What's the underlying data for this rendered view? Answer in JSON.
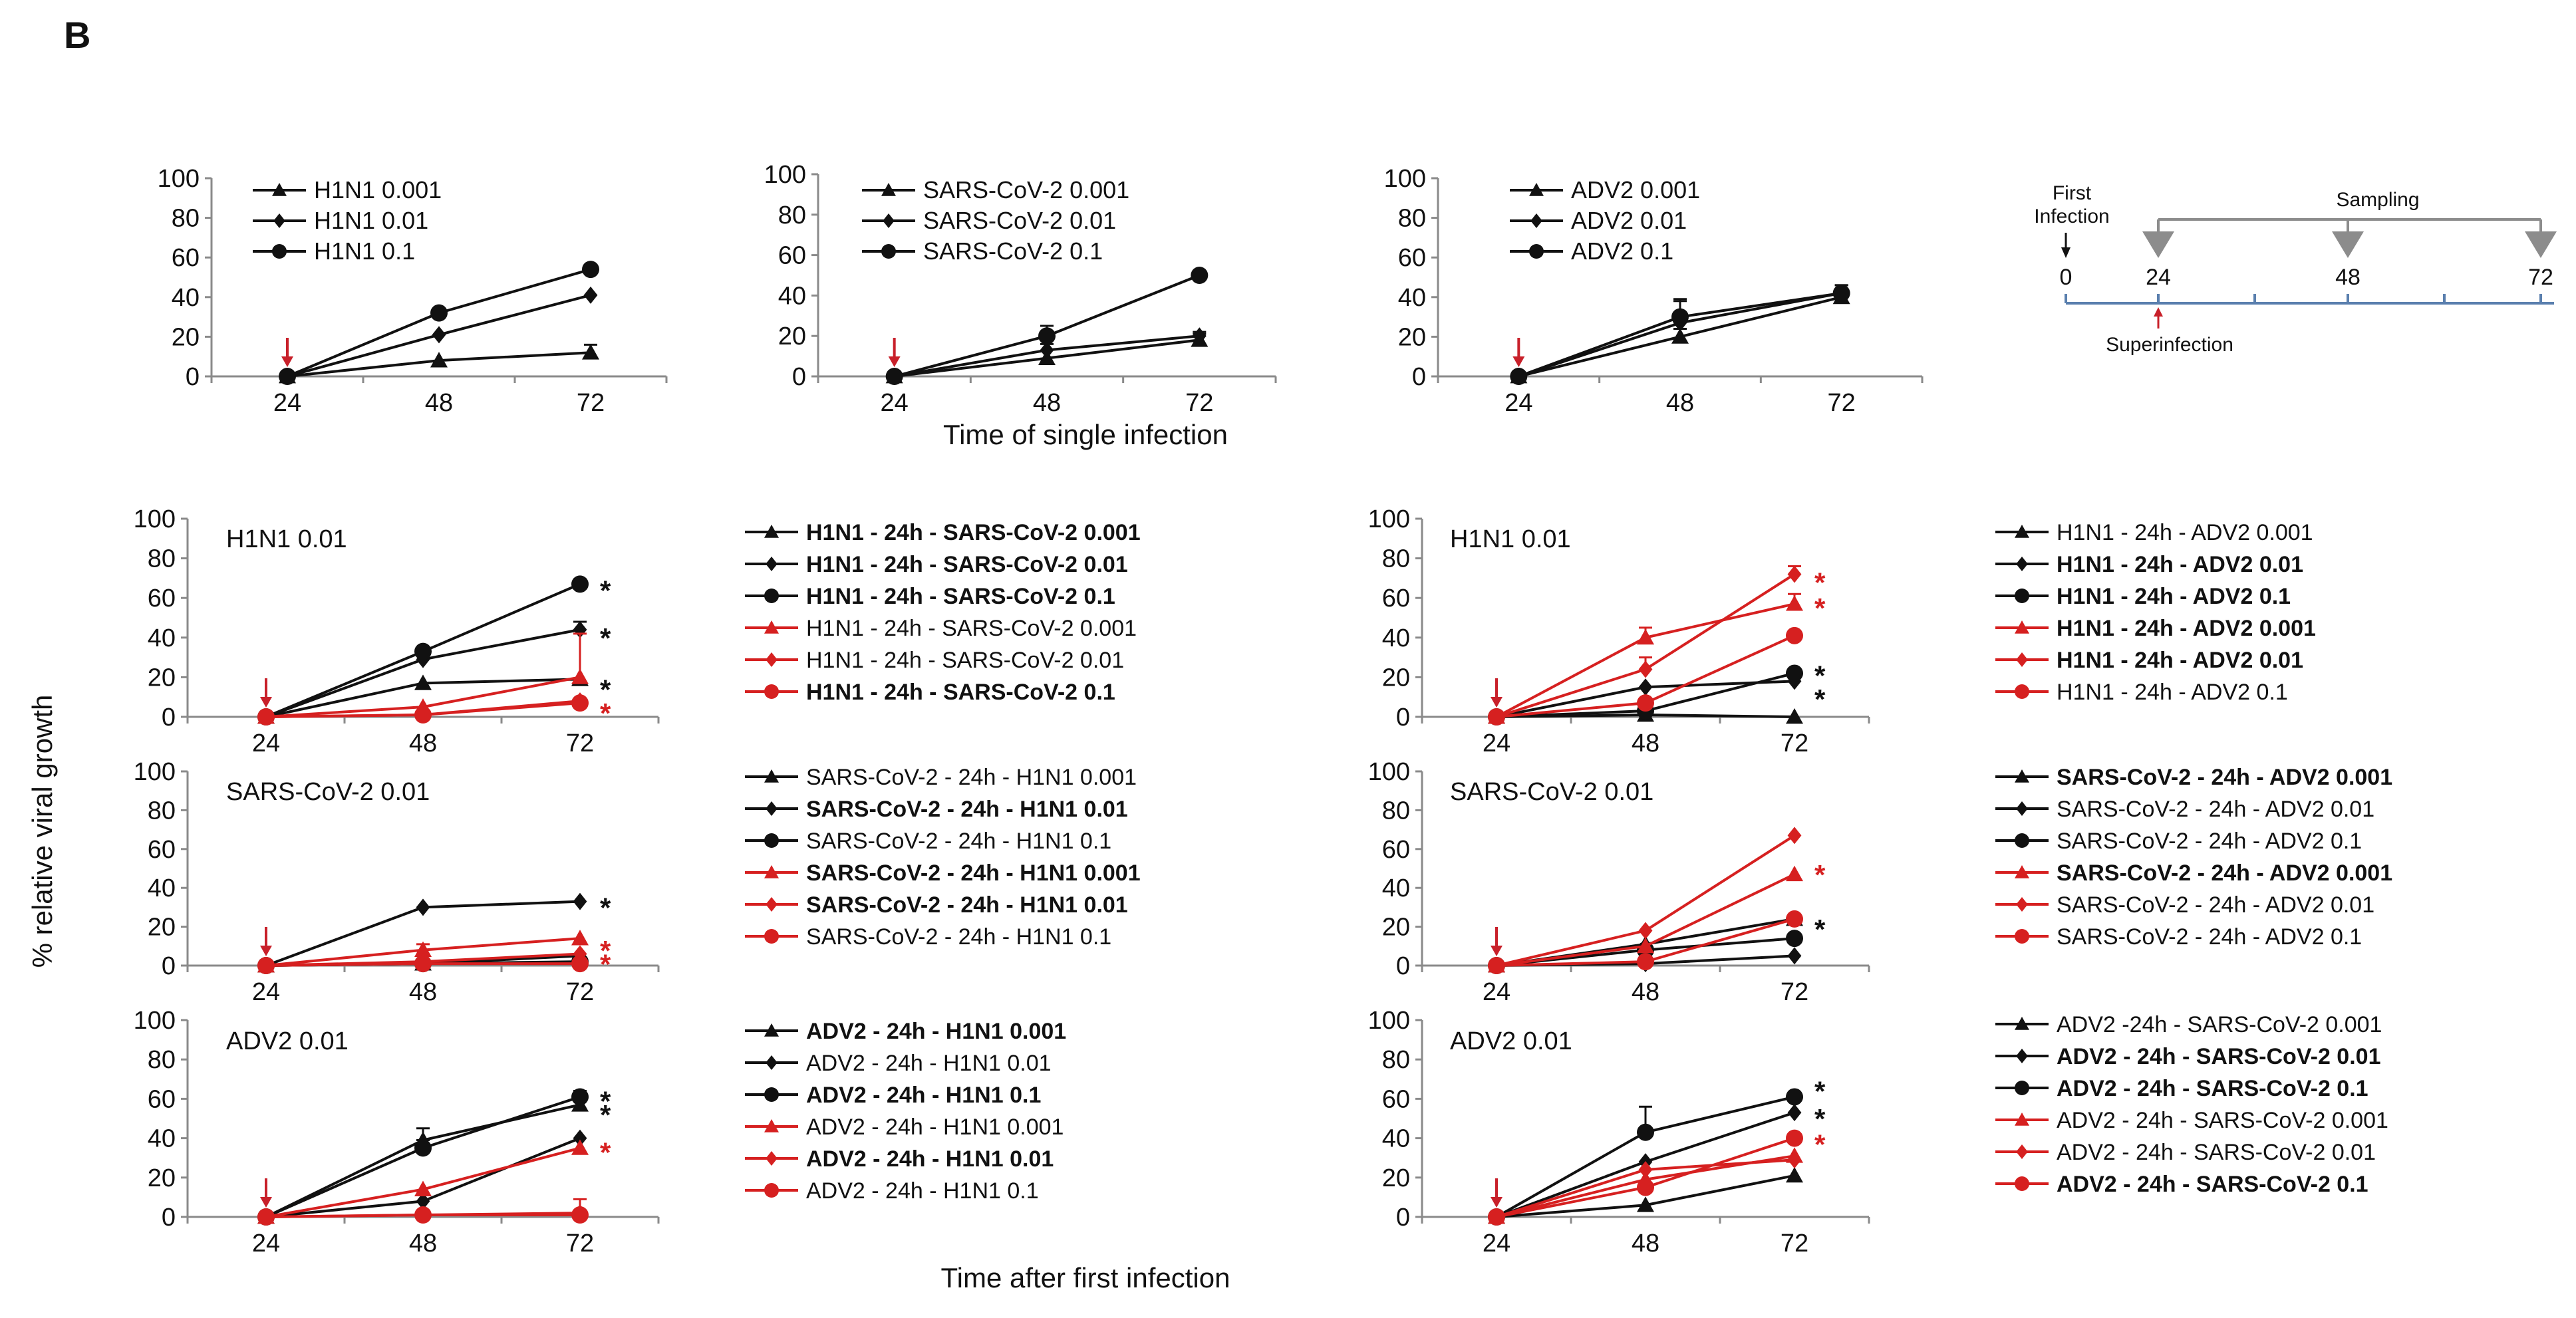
{
  "panel_label": "B",
  "y_axis_label": "% relative viral growth",
  "x_label_top": "Time of single infection",
  "x_label_bottom": "Time after first infection",
  "colors": {
    "black": "#111111",
    "red": "#d62020",
    "arrow": "#c8202a",
    "timeline_gray": "#8c8c8c",
    "timeline_blue": "#5a7fae"
  },
  "timeline": {
    "first_infection_line1": "First",
    "first_infection_line2": "Infection",
    "sampling": "Sampling",
    "superinfection": "Superinfection",
    "ticks": [
      "0",
      "24",
      "48",
      "72"
    ]
  },
  "chart_data": [
    {
      "id": "single-h1n1",
      "type": "line",
      "categories": [
        "24",
        "48",
        "72"
      ],
      "ylim": [
        0,
        100
      ],
      "yticks": [
        "0",
        "20",
        "40",
        "60",
        "80",
        "100"
      ],
      "title": "",
      "series": [
        {
          "name": "H1N1 0.001",
          "values": [
            0,
            8,
            12
          ],
          "color": "black",
          "marker": "triangle",
          "bold": false,
          "err": [
            0,
            0,
            4
          ]
        },
        {
          "name": "H1N1 0.01",
          "values": [
            0,
            21,
            41
          ],
          "color": "black",
          "marker": "diamond",
          "bold": false,
          "err": [
            0,
            0,
            0
          ]
        },
        {
          "name": "H1N1 0.1",
          "values": [
            0,
            32,
            54
          ],
          "color": "black",
          "marker": "circle",
          "bold": false,
          "err": [
            0,
            0,
            0
          ]
        }
      ],
      "stars": []
    },
    {
      "id": "single-sars",
      "type": "line",
      "categories": [
        "24",
        "48",
        "72"
      ],
      "ylim": [
        0,
        100
      ],
      "yticks": [
        "0",
        "20",
        "40",
        "60",
        "80",
        "100"
      ],
      "title": "",
      "series": [
        {
          "name": "SARS-CoV-2 0.001",
          "values": [
            0,
            9,
            18
          ],
          "color": "black",
          "marker": "triangle",
          "bold": false,
          "err": [
            0,
            0,
            3
          ]
        },
        {
          "name": "SARS-CoV-2 0.01",
          "values": [
            0,
            13,
            20
          ],
          "color": "black",
          "marker": "diamond",
          "bold": false,
          "err": [
            0,
            3,
            2
          ]
        },
        {
          "name": "SARS-CoV-2 0.1",
          "values": [
            0,
            20,
            50
          ],
          "color": "black",
          "marker": "circle",
          "bold": false,
          "err": [
            0,
            5,
            0
          ]
        }
      ],
      "stars": []
    },
    {
      "id": "single-adv2",
      "type": "line",
      "categories": [
        "24",
        "48",
        "72"
      ],
      "ylim": [
        0,
        100
      ],
      "yticks": [
        "0",
        "20",
        "40",
        "60",
        "80",
        "100"
      ],
      "title": "",
      "series": [
        {
          "name": "ADV2 0.001",
          "values": [
            0,
            20,
            40
          ],
          "color": "black",
          "marker": "triangle",
          "bold": false,
          "err": [
            0,
            4,
            3
          ]
        },
        {
          "name": "ADV2 0.01",
          "values": [
            0,
            27,
            42
          ],
          "color": "black",
          "marker": "diamond",
          "bold": false,
          "err": [
            0,
            12,
            4
          ]
        },
        {
          "name": "ADV2 0.1",
          "values": [
            0,
            30,
            42
          ],
          "color": "black",
          "marker": "circle",
          "bold": false,
          "err": [
            0,
            8,
            4
          ]
        }
      ],
      "stars": []
    },
    {
      "id": "h1n1-sars",
      "type": "line",
      "categories": [
        "24",
        "48",
        "72"
      ],
      "ylim": [
        0,
        100
      ],
      "yticks": [
        "0",
        "20",
        "40",
        "60",
        "80",
        "100"
      ],
      "title": "H1N1 0.01",
      "series": [
        {
          "name": "H1N1 - 24h - SARS-CoV-2 0.001",
          "values": [
            0,
            17,
            19
          ],
          "color": "black",
          "marker": "triangle",
          "bold": true,
          "err": [
            0,
            0,
            0
          ]
        },
        {
          "name": "H1N1 - 24h - SARS-CoV-2 0.01",
          "values": [
            0,
            29,
            44
          ],
          "color": "black",
          "marker": "diamond",
          "bold": true,
          "err": [
            0,
            0,
            4
          ]
        },
        {
          "name": "H1N1 - 24h - SARS-CoV-2 0.1",
          "values": [
            0,
            33,
            67
          ],
          "color": "black",
          "marker": "circle",
          "bold": true,
          "err": [
            0,
            0,
            0
          ]
        },
        {
          "name": "H1N1 - 24h - SARS-CoV-2 0.001",
          "values": [
            0,
            5,
            20
          ],
          "color": "red",
          "marker": "triangle",
          "bold": false,
          "err": [
            0,
            0,
            22
          ]
        },
        {
          "name": "H1N1 - 24h - SARS-CoV-2 0.01",
          "values": [
            0,
            1,
            8
          ],
          "color": "red",
          "marker": "diamond",
          "bold": false,
          "err": [
            0,
            0,
            0
          ]
        },
        {
          "name": "H1N1 - 24h - SARS-CoV-2 0.1",
          "values": [
            0,
            1,
            7
          ],
          "color": "red",
          "marker": "circle",
          "bold": true,
          "err": [
            0,
            0,
            0
          ]
        }
      ],
      "stars": [
        {
          "value": 67,
          "color": "black"
        },
        {
          "value": 43,
          "color": "black"
        },
        {
          "value": 17,
          "color": "black"
        },
        {
          "value": 5,
          "color": "red"
        }
      ]
    },
    {
      "id": "h1n1-adv2",
      "type": "line",
      "categories": [
        "24",
        "48",
        "72"
      ],
      "ylim": [
        0,
        100
      ],
      "yticks": [
        "0",
        "20",
        "40",
        "60",
        "80",
        "100"
      ],
      "title": "H1N1 0.01",
      "series": [
        {
          "name": "H1N1 - 24h - ADV2 0.001",
          "values": [
            0,
            1,
            0
          ],
          "color": "black",
          "marker": "triangle",
          "bold": false,
          "err": [
            0,
            0,
            0
          ]
        },
        {
          "name": "H1N1 - 24h - ADV2 0.01",
          "values": [
            0,
            15,
            18
          ],
          "color": "black",
          "marker": "diamond",
          "bold": true,
          "err": [
            0,
            0,
            0
          ]
        },
        {
          "name": "H1N1 - 24h - ADV2 0.1",
          "values": [
            0,
            3,
            22
          ],
          "color": "black",
          "marker": "circle",
          "bold": true,
          "err": [
            0,
            0,
            0
          ]
        },
        {
          "name": "H1N1 - 24h - ADV2 0.001",
          "values": [
            0,
            40,
            57
          ],
          "color": "red",
          "marker": "triangle",
          "bold": true,
          "err": [
            0,
            5,
            5
          ]
        },
        {
          "name": "H1N1 - 24h - ADV2 0.01",
          "values": [
            0,
            24,
            72
          ],
          "color": "red",
          "marker": "diamond",
          "bold": true,
          "err": [
            0,
            6,
            4
          ]
        },
        {
          "name": "H1N1 - 24h - ADV2 0.1",
          "values": [
            0,
            7,
            41
          ],
          "color": "red",
          "marker": "circle",
          "bold": false,
          "err": [
            0,
            0,
            0
          ]
        }
      ],
      "stars": [
        {
          "value": 71,
          "color": "red"
        },
        {
          "value": 58,
          "color": "red"
        },
        {
          "value": 24,
          "color": "black"
        },
        {
          "value": 12,
          "color": "black"
        }
      ]
    },
    {
      "id": "sars-h1n1",
      "type": "line",
      "categories": [
        "24",
        "48",
        "72"
      ],
      "ylim": [
        0,
        100
      ],
      "yticks": [
        "0",
        "20",
        "40",
        "60",
        "80",
        "100"
      ],
      "title": "SARS-CoV-2 0.01",
      "series": [
        {
          "name": "SARS-CoV-2 - 24h - H1N1 0.001",
          "values": [
            0,
            1,
            5
          ],
          "color": "black",
          "marker": "triangle",
          "bold": false,
          "err": [
            0,
            0,
            0
          ]
        },
        {
          "name": "SARS-CoV-2 - 24h - H1N1 0.01",
          "values": [
            0,
            30,
            33
          ],
          "color": "black",
          "marker": "diamond",
          "bold": true,
          "err": [
            0,
            0,
            0
          ]
        },
        {
          "name": "SARS-CoV-2 - 24h - H1N1 0.1",
          "values": [
            0,
            1,
            2
          ],
          "color": "black",
          "marker": "circle",
          "bold": false,
          "err": [
            0,
            0,
            0
          ]
        },
        {
          "name": "SARS-CoV-2 - 24h - H1N1 0.001",
          "values": [
            0,
            8,
            14
          ],
          "color": "red",
          "marker": "triangle",
          "bold": true,
          "err": [
            0,
            3,
            0
          ]
        },
        {
          "name": "SARS-CoV-2 - 24h - H1N1 0.01",
          "values": [
            0,
            2,
            6
          ],
          "color": "red",
          "marker": "diamond",
          "bold": true,
          "err": [
            0,
            0,
            0
          ]
        },
        {
          "name": "SARS-CoV-2 - 24h - H1N1 0.1",
          "values": [
            0,
            1,
            1
          ],
          "color": "red",
          "marker": "circle",
          "bold": false,
          "err": [
            0,
            0,
            0
          ]
        }
      ],
      "stars": [
        {
          "value": 33,
          "color": "black"
        },
        {
          "value": 11,
          "color": "red"
        },
        {
          "value": 4,
          "color": "red"
        }
      ]
    },
    {
      "id": "sars-adv2",
      "type": "line",
      "categories": [
        "24",
        "48",
        "72"
      ],
      "ylim": [
        0,
        100
      ],
      "yticks": [
        "0",
        "20",
        "40",
        "60",
        "80",
        "100"
      ],
      "title": "SARS-CoV-2 0.01",
      "series": [
        {
          "name": "SARS-CoV-2 - 24h - ADV2 0.001",
          "values": [
            0,
            11,
            24
          ],
          "color": "black",
          "marker": "triangle",
          "bold": true,
          "err": [
            0,
            0,
            0
          ]
        },
        {
          "name": "SARS-CoV-2 - 24h - ADV2 0.01",
          "values": [
            0,
            1,
            5
          ],
          "color": "black",
          "marker": "diamond",
          "bold": false,
          "err": [
            0,
            0,
            0
          ]
        },
        {
          "name": "SARS-CoV-2 - 24h - ADV2 0.1",
          "values": [
            0,
            8,
            14
          ],
          "color": "black",
          "marker": "circle",
          "bold": false,
          "err": [
            0,
            0,
            0
          ]
        },
        {
          "name": "SARS-CoV-2 - 24h - ADV2 0.001",
          "values": [
            0,
            10,
            47
          ],
          "color": "red",
          "marker": "triangle",
          "bold": true,
          "err": [
            0,
            0,
            0
          ]
        },
        {
          "name": "SARS-CoV-2 - 24h - ADV2 0.01",
          "values": [
            0,
            18,
            67
          ],
          "color": "red",
          "marker": "diamond",
          "bold": false,
          "err": [
            0,
            0,
            0
          ]
        },
        {
          "name": "SARS-CoV-2 - 24h - ADV2 0.1",
          "values": [
            0,
            2,
            24
          ],
          "color": "red",
          "marker": "circle",
          "bold": false,
          "err": [
            0,
            0,
            0
          ]
        }
      ],
      "stars": [
        {
          "value": 50,
          "color": "red"
        },
        {
          "value": 22,
          "color": "black"
        }
      ]
    },
    {
      "id": "adv2-h1n1",
      "type": "line",
      "categories": [
        "24",
        "48",
        "72"
      ],
      "ylim": [
        0,
        100
      ],
      "yticks": [
        "0",
        "20",
        "40",
        "60",
        "80",
        "100"
      ],
      "title": "ADV2 0.01",
      "series": [
        {
          "name": "ADV2 - 24h - H1N1 0.001",
          "values": [
            0,
            39,
            57
          ],
          "color": "black",
          "marker": "triangle",
          "bold": true,
          "err": [
            0,
            6,
            4
          ]
        },
        {
          "name": "ADV2 - 24h - H1N1 0.01",
          "values": [
            0,
            8,
            40
          ],
          "color": "black",
          "marker": "diamond",
          "bold": false,
          "err": [
            0,
            0,
            0
          ]
        },
        {
          "name": "ADV2 - 24h - H1N1 0.1",
          "values": [
            0,
            35,
            61
          ],
          "color": "black",
          "marker": "circle",
          "bold": true,
          "err": [
            0,
            4,
            3
          ]
        },
        {
          "name": "ADV2 - 24h - H1N1 0.001",
          "values": [
            0,
            14,
            35
          ],
          "color": "red",
          "marker": "triangle",
          "bold": false,
          "err": [
            0,
            0,
            0
          ]
        },
        {
          "name": "ADV2 - 24h - H1N1 0.01",
          "values": [
            0,
            1,
            2
          ],
          "color": "red",
          "marker": "diamond",
          "bold": true,
          "err": [
            0,
            0,
            7
          ]
        },
        {
          "name": "ADV2 - 24h - H1N1 0.1",
          "values": [
            0,
            1,
            1
          ],
          "color": "red",
          "marker": "circle",
          "bold": false,
          "err": [
            0,
            0,
            0
          ]
        }
      ],
      "stars": [
        {
          "value": 62,
          "color": "black"
        },
        {
          "value": 55,
          "color": "black"
        },
        {
          "value": 36,
          "color": "red"
        }
      ]
    },
    {
      "id": "adv2-sars",
      "type": "line",
      "categories": [
        "24",
        "48",
        "72"
      ],
      "ylim": [
        0,
        100
      ],
      "yticks": [
        "0",
        "20",
        "40",
        "60",
        "80",
        "100"
      ],
      "title": "ADV2 0.01",
      "series": [
        {
          "name": "ADV2 -24h - SARS-CoV-2 0.001",
          "values": [
            0,
            6,
            21
          ],
          "color": "black",
          "marker": "triangle",
          "bold": false,
          "err": [
            0,
            0,
            0
          ]
        },
        {
          "name": "ADV2 - 24h - SARS-CoV-2 0.01",
          "values": [
            0,
            28,
            53
          ],
          "color": "black",
          "marker": "diamond",
          "bold": true,
          "err": [
            0,
            0,
            0
          ]
        },
        {
          "name": "ADV2 - 24h - SARS-CoV-2 0.1",
          "values": [
            0,
            43,
            61
          ],
          "color": "black",
          "marker": "circle",
          "bold": true,
          "err": [
            0,
            13,
            0
          ]
        },
        {
          "name": "ADV2 - 24h - SARS-CoV-2 0.001",
          "values": [
            0,
            19,
            31
          ],
          "color": "red",
          "marker": "triangle",
          "bold": false,
          "err": [
            0,
            0,
            0
          ]
        },
        {
          "name": "ADV2 - 24h - SARS-CoV-2 0.01",
          "values": [
            0,
            24,
            29
          ],
          "color": "red",
          "marker": "diamond",
          "bold": false,
          "err": [
            0,
            0,
            0
          ]
        },
        {
          "name": "ADV2 - 24h - SARS-CoV-2 0.1",
          "values": [
            0,
            15,
            40
          ],
          "color": "red",
          "marker": "circle",
          "bold": true,
          "err": [
            0,
            0,
            0
          ]
        }
      ],
      "stars": [
        {
          "value": 67,
          "color": "black"
        },
        {
          "value": 53,
          "color": "black"
        },
        {
          "value": 40,
          "color": "red"
        }
      ]
    }
  ]
}
